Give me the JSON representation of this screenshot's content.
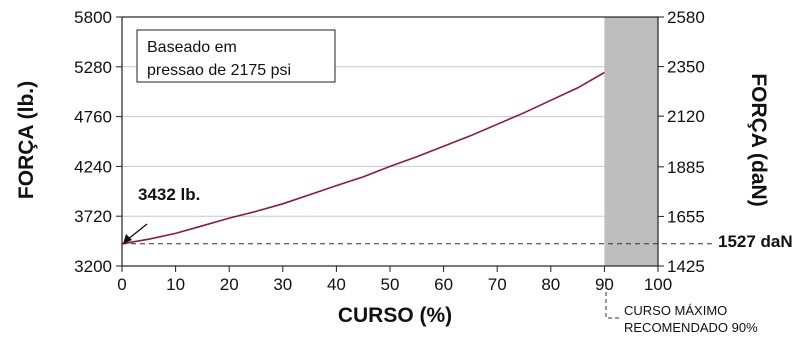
{
  "chart_data": {
    "type": "line",
    "xlabel": "CURSO (%)",
    "ylabel_left": "FORÇA (lb.)",
    "ylabel_right": "FORÇA (daN)",
    "xlim": [
      0,
      100
    ],
    "ylim_left": [
      3200,
      5800
    ],
    "ylim_right": [
      1425,
      2580
    ],
    "x_ticks": [
      "0",
      "10",
      "20",
      "30",
      "40",
      "50",
      "60",
      "70",
      "80",
      "90",
      "100"
    ],
    "y_ticks_left": [
      "3200",
      "3720",
      "4240",
      "4760",
      "5280",
      "5800"
    ],
    "y_ticks_right": [
      "1425",
      "1655",
      "1885",
      "2120",
      "2350",
      "2580"
    ],
    "grid": "horizontal",
    "series": [
      {
        "color": "#8b1a3e",
        "x": [
          0,
          5,
          10,
          15,
          20,
          25,
          30,
          35,
          40,
          45,
          50,
          55,
          60,
          65,
          70,
          75,
          80,
          85,
          90
        ],
        "y": [
          3432,
          3480,
          3540,
          3620,
          3700,
          3770,
          3850,
          3945,
          4040,
          4130,
          4240,
          4340,
          4450,
          4560,
          4680,
          4800,
          4930,
          5060,
          5220
        ]
      }
    ],
    "reference_line": {
      "y_left": 3432,
      "style": "dashed"
    },
    "shaded_region": {
      "x_from": 90,
      "x_to": 100,
      "color": "#bebebe"
    },
    "annotations": {
      "box_line1": "Baseado em",
      "box_line2": "pressao de 2175 psi",
      "start_label": "3432 lb.",
      "right_label": "1527 daN",
      "max_label_line1": "CURSO MÁXIMO",
      "max_label_line2": "RECOMENDADO 90%"
    }
  }
}
